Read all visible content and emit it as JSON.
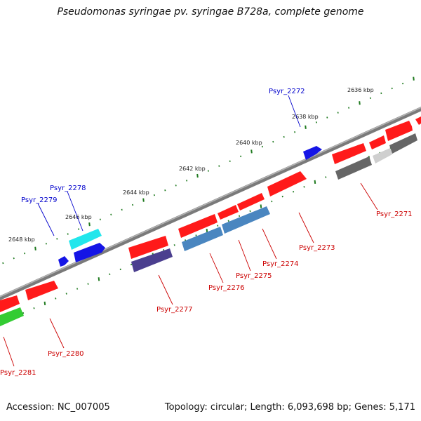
{
  "title": "Pseudomonas syringae pv. syringae B728a, complete genome",
  "footer": {
    "accession": "Accession: NC_007005",
    "summary": "Topology: circular; Length: 6,093,698 bp; Genes: 5,171"
  },
  "scale_labels": [
    "2636 kbp",
    "2638 kbp",
    "2640 kbp",
    "2642 kbp",
    "2644 kbp",
    "2646 kbp",
    "2648 kbp"
  ],
  "genes": [
    {
      "name": "Psyr_2271",
      "color": "#cc0000"
    },
    {
      "name": "Psyr_2272",
      "color": "#0000cc"
    },
    {
      "name": "Psyr_2273",
      "color": "#cc0000"
    },
    {
      "name": "Psyr_2274",
      "color": "#cc0000"
    },
    {
      "name": "Psyr_2275",
      "color": "#cc0000"
    },
    {
      "name": "Psyr_2276",
      "color": "#cc0000"
    },
    {
      "name": "Psyr_2277",
      "color": "#cc0000"
    },
    {
      "name": "Psyr_2278",
      "color": "#0000cc"
    },
    {
      "name": "Psyr_2279",
      "color": "#0000cc"
    },
    {
      "name": "Psyr_2280",
      "color": "#cc0000"
    },
    {
      "name": "Psyr_2281",
      "color": "#cc0000"
    }
  ],
  "colors": {
    "forward_gene": "#ff1a1a",
    "reverse_gene_blue": "#1515e6",
    "cyan_gene": "#22e6ec",
    "green_gene": "#33cc33",
    "steelblue_cog": "#4a86c0",
    "purple_cog": "#4b3f8f",
    "grey_cog": "#666666",
    "backbone": "#888888",
    "tick": "#1f7a1f"
  }
}
